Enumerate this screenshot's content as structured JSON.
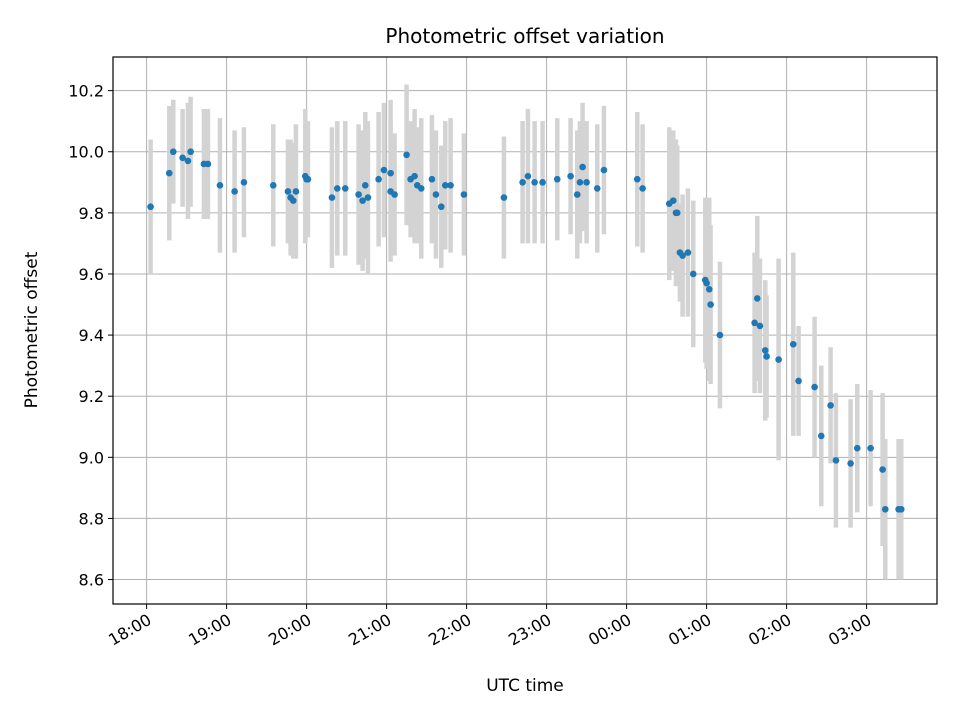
{
  "chart_data": {
    "type": "scatter",
    "title": "Photometric offset variation",
    "xlabel": "UTC time",
    "ylabel": "Photometric offset",
    "x_ticks": [
      "18:00",
      "19:00",
      "20:00",
      "21:00",
      "22:00",
      "23:00",
      "00:00",
      "01:00",
      "02:00",
      "03:00"
    ],
    "y_ticks": [
      "8.6",
      "8.8",
      "9.0",
      "9.2",
      "9.4",
      "9.6",
      "9.8",
      "10.0",
      "10.2"
    ],
    "xlim_hours_from_1800": [
      -0.42,
      9.88
    ],
    "ylim": [
      8.52,
      10.31
    ],
    "grid": true,
    "colors": {
      "marker": "#1f77b4",
      "errorbar": "#d3d3d3",
      "grid": "#b0b0b0"
    },
    "series": [
      {
        "x": [
          "18:03",
          "18:17",
          "18:20",
          "18:27",
          "18:31",
          "18:33",
          "18:43",
          "18:46",
          "18:55",
          "19:06",
          "19:13",
          "19:35",
          "19:46",
          "19:48",
          "19:50",
          "19:52",
          "19:59",
          "20:00",
          "20:01",
          "20:19",
          "20:23",
          "20:29",
          "20:39",
          "20:42",
          "20:44",
          "20:46",
          "20:54",
          "20:58",
          "21:03",
          "21:03",
          "21:06",
          "21:15",
          "21:18",
          "21:21",
          "21:23",
          "21:26",
          "21:34",
          "21:37",
          "21:41",
          "21:44",
          "21:48",
          "21:58",
          "22:28",
          "22:42",
          "22:46",
          "22:51",
          "22:57",
          "23:08",
          "23:18",
          "23:23",
          "23:25",
          "23:27",
          "23:30",
          "23:38",
          "23:43",
          "00:08",
          "00:12",
          "00:32",
          "00:35",
          "00:37",
          "00:38",
          "00:40",
          "00:42",
          "00:46",
          "00:50",
          "00:59",
          "01:00",
          "01:02",
          "01:03",
          "01:10",
          "01:36",
          "01:38",
          "01:40",
          "01:44",
          "01:45",
          "01:54",
          "02:05",
          "02:09",
          "02:21",
          "02:26",
          "02:33",
          "02:37",
          "02:48",
          "02:53",
          "03:03",
          "03:12",
          "03:14",
          "03:24",
          "03:26"
        ],
        "y": [
          9.82,
          9.93,
          10.0,
          9.98,
          9.97,
          10.0,
          9.96,
          9.96,
          9.89,
          9.87,
          9.9,
          9.89,
          9.87,
          9.85,
          9.84,
          9.87,
          9.92,
          9.91,
          9.91,
          9.85,
          9.88,
          9.88,
          9.86,
          9.84,
          9.89,
          9.85,
          9.91,
          9.94,
          9.93,
          9.87,
          9.86,
          9.99,
          9.91,
          9.92,
          9.89,
          9.88,
          9.91,
          9.86,
          9.82,
          9.89,
          9.89,
          9.86,
          9.85,
          9.9,
          9.92,
          9.9,
          9.9,
          9.91,
          9.92,
          9.86,
          9.9,
          9.95,
          9.9,
          9.88,
          9.94,
          9.91,
          9.88,
          9.83,
          9.84,
          9.8,
          9.8,
          9.67,
          9.66,
          9.67,
          9.6,
          9.58,
          9.57,
          9.55,
          9.5,
          9.4,
          9.44,
          9.52,
          9.43,
          9.35,
          9.33,
          9.32,
          9.37,
          9.25,
          9.23,
          9.07,
          9.17,
          8.99,
          8.98,
          9.03,
          9.03,
          8.96,
          8.83,
          8.83,
          8.83
        ],
        "err": [
          0.22,
          0.22,
          0.17,
          0.16,
          0.19,
          0.18,
          0.18,
          0.18,
          0.22,
          0.2,
          0.18,
          0.2,
          0.17,
          0.19,
          0.19,
          0.22,
          0.22,
          0.19,
          0.19,
          0.23,
          0.22,
          0.22,
          0.23,
          0.23,
          0.24,
          0.25,
          0.22,
          0.22,
          0.24,
          0.23,
          0.2,
          0.23,
          0.19,
          0.22,
          0.19,
          0.23,
          0.21,
          0.21,
          0.2,
          0.21,
          0.22,
          0.2,
          0.2,
          0.2,
          0.22,
          0.2,
          0.2,
          0.2,
          0.19,
          0.21,
          0.2,
          0.21,
          0.2,
          0.21,
          0.21,
          0.22,
          0.21,
          0.25,
          0.23,
          0.24,
          0.22,
          0.16,
          0.2,
          0.21,
          0.24,
          0.27,
          0.28,
          0.3,
          0.26,
          0.24,
          0.23,
          0.27,
          0.22,
          0.23,
          0.2,
          0.33,
          0.3,
          0.18,
          0.23,
          0.23,
          0.19,
          0.22,
          0.21,
          0.21,
          0.19,
          0.25,
          0.23,
          0.23,
          0.23
        ]
      }
    ]
  }
}
